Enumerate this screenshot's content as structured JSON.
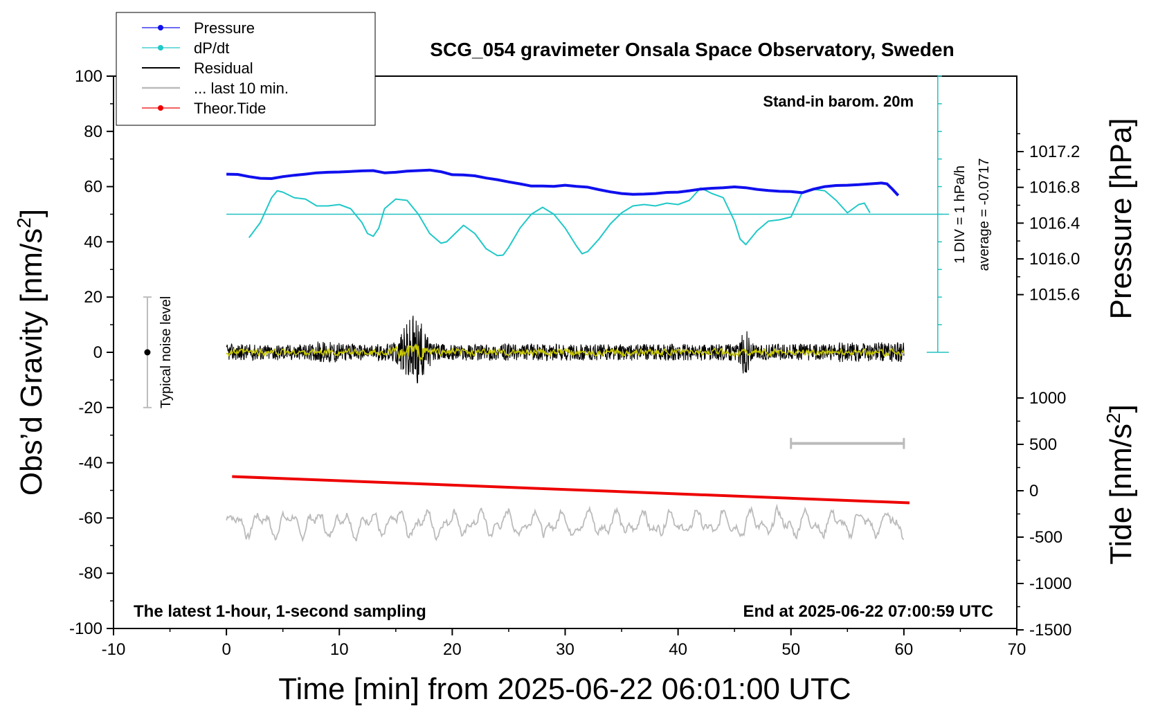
{
  "chart_data": {
    "type": "line",
    "title": "SCG_054 gravimeter Onsala Space Observatory, Sweden",
    "xlabel": "Time [min] from 2025-06-22 06:01:00 UTC",
    "ylabel_left_main": "Obs’d Gravity [nm/s",
    "ylabel_left_sup": "2",
    "ylabel_left_end": "]",
    "ylabel_right_top": "Pressure [hPa]",
    "ylabel_right_bottom_main": "Tide [nm/s",
    "ylabel_right_bottom_sup": "2",
    "ylabel_right_bottom_end": "]",
    "xlim": [
      -10,
      70
    ],
    "ylim": [
      -100,
      100
    ],
    "pressure_lim": [
      1015.2,
      1017.6
    ],
    "tide_lim": [
      -1500,
      1500
    ],
    "x_ticks": [
      "-10",
      "0",
      "10",
      "20",
      "30",
      "40",
      "50",
      "60",
      "70"
    ],
    "y_ticks": [
      "-100",
      "-80",
      "-60",
      "-40",
      "-20",
      "0",
      "20",
      "40",
      "60",
      "80",
      "100"
    ],
    "pressure_ticks": [
      "1015.6",
      "1016.0",
      "1016.4",
      "1016.8",
      "1017.2"
    ],
    "tide_ticks": [
      "-1500",
      "-1000",
      "-500",
      "0",
      "500",
      "1000"
    ],
    "legend": [
      "Pressure",
      "dP/dt",
      "Residual",
      "... last 10 min.",
      "Theor.Tide"
    ],
    "notes": {
      "barometer": "Stand-in barom. 20m",
      "div": "1 DIV = 1 hPa/h",
      "average": "average = -0.0717",
      "noise": "Typical noise level",
      "bottom_left": "The latest 1-hour, 1-second sampling",
      "bottom_right": "End at 2025-06-22 07:00:59 UTC"
    },
    "noise_bar": {
      "x": -7,
      "y_low": -20,
      "y_high": 20,
      "center": 0
    },
    "last10_bar": {
      "x_start": 50,
      "x_end": 60,
      "y": -33
    },
    "series": {
      "pressure": {
        "x": [
          0,
          1,
          2,
          3,
          4,
          5,
          6,
          7,
          8,
          9,
          10,
          11,
          12,
          13,
          14,
          15,
          16,
          17,
          18,
          19,
          20,
          21,
          22,
          23,
          24,
          25,
          26,
          27,
          28,
          29,
          30,
          31,
          32,
          33,
          34,
          35,
          36,
          37,
          38,
          39,
          40,
          41,
          42,
          43,
          44,
          45,
          46,
          47,
          48,
          49,
          50,
          51,
          52,
          53,
          54,
          55,
          56,
          57,
          58,
          58.5,
          59,
          59.5
        ],
        "y": [
          64.5,
          64.4,
          63.6,
          63.0,
          62.9,
          63.6,
          64.1,
          64.5,
          65.0,
          65.2,
          65.3,
          65.5,
          65.7,
          65.8,
          65.0,
          65.2,
          65.6,
          65.8,
          66.0,
          65.4,
          64.3,
          64.2,
          63.9,
          63.1,
          62.5,
          61.7,
          61.0,
          60.2,
          60.2,
          60.1,
          60.5,
          60.1,
          59.8,
          58.9,
          58.1,
          57.5,
          57.2,
          57.3,
          57.5,
          57.9,
          58.0,
          58.5,
          59.1,
          59.4,
          59.6,
          59.9,
          59.6,
          59.0,
          58.6,
          58.3,
          58.2,
          57.8,
          59.1,
          60.0,
          60.4,
          60.5,
          60.7,
          61.0,
          61.3,
          61.0,
          59.0,
          56.8
        ]
      },
      "dpdt": {
        "x": [
          2,
          3,
          4,
          4.5,
          5,
          6,
          7,
          8,
          9,
          10,
          11,
          12,
          12.5,
          13,
          13.5,
          14,
          15,
          16,
          17,
          18,
          19,
          19.5,
          20,
          21,
          22,
          23,
          24,
          24.5,
          25,
          26,
          27,
          28,
          29,
          30,
          31,
          31.5,
          32,
          33,
          34,
          35,
          36,
          37,
          38,
          39,
          40,
          41,
          42,
          43,
          44,
          45,
          45.5,
          46,
          47,
          48,
          49,
          50,
          51,
          52,
          53,
          54,
          55,
          56,
          56.5,
          57
        ],
        "y": [
          41.5,
          47.0,
          56.0,
          58.5,
          58.0,
          56.0,
          55.5,
          53.0,
          53.0,
          53.5,
          52.0,
          47.0,
          43.0,
          42.0,
          45.0,
          52.0,
          55.5,
          55.0,
          50.0,
          43.0,
          39.5,
          40.0,
          42.0,
          46.0,
          43.0,
          37.5,
          35.0,
          35.2,
          38.0,
          45.0,
          50.0,
          52.5,
          50.0,
          45.0,
          38.5,
          35.7,
          36.5,
          41.0,
          46.5,
          50.5,
          53.0,
          53.5,
          53.0,
          54.0,
          53.5,
          55.0,
          59.5,
          57.5,
          56.0,
          47.5,
          41.0,
          39.0,
          44.0,
          47.5,
          48.0,
          49.0,
          58.0,
          59.0,
          58.5,
          55.0,
          50.5,
          53.5,
          54.0,
          50.5
        ]
      },
      "dpdt_zero_line": {
        "x": [
          0,
          64
        ],
        "y": [
          50,
          50
        ]
      },
      "theor_tide": {
        "x": [
          0.5,
          60.5
        ],
        "y": [
          -45,
          -54.5
        ]
      },
      "residual_note": "high-frequency noise around 0, approx +/-3 nm/s2 with bursts near 16-18 min (+/-15) and 46 min (-13)",
      "last10_note": "grey trace around -60, amplitude approx +/-5"
    }
  }
}
